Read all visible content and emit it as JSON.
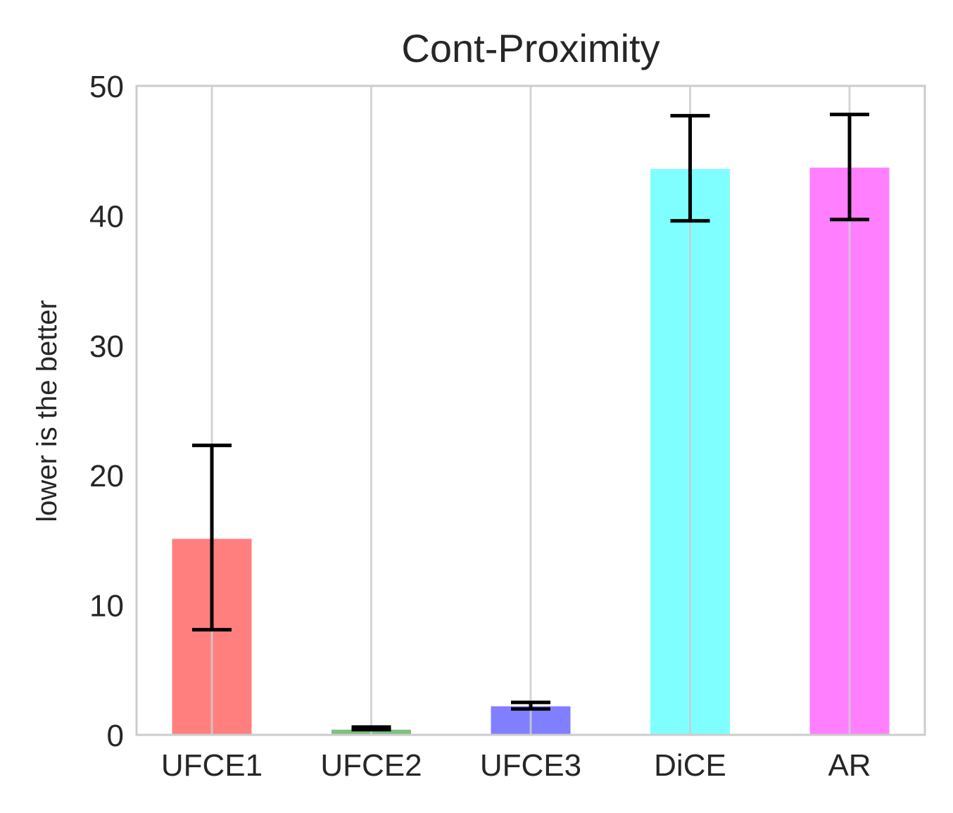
{
  "chart_data": {
    "type": "bar",
    "title": "Cont-Proximity",
    "xlabel": "",
    "ylabel": "lower is the better",
    "categories": [
      "UFCE1",
      "UFCE2",
      "UFCE3",
      "DiCE",
      "AR"
    ],
    "values": [
      15.1,
      0.4,
      2.2,
      43.6,
      43.7
    ],
    "errors": [
      {
        "low": 8.1,
        "high": 22.3
      },
      {
        "low": 0.4,
        "high": 0.6
      },
      {
        "low": 2.0,
        "high": 2.5
      },
      {
        "low": 39.6,
        "high": 47.7
      },
      {
        "low": 39.7,
        "high": 47.8
      }
    ],
    "colors": [
      "#ff7f7f",
      "#7fbf7f",
      "#7f7fff",
      "#7fffff",
      "#ff7fff"
    ],
    "ylim": [
      0,
      50
    ],
    "yticks": [
      "0",
      "10",
      "20",
      "30",
      "40",
      "50"
    ],
    "grid": "vertical",
    "legend": "none"
  }
}
